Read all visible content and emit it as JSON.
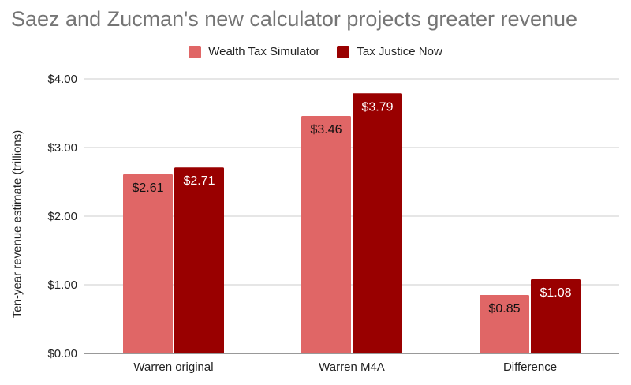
{
  "chart_data": {
    "type": "bar",
    "title": "Saez and Zucman's new calculator projects greater revenue",
    "xlabel": "",
    "ylabel": "Ten-year revenue estimate (trillions)",
    "categories": [
      "Warren original",
      "Warren M4A",
      "Difference"
    ],
    "series": [
      {
        "name": "Wealth Tax Simulator",
        "color": "#e06666",
        "values": [
          2.61,
          3.46,
          0.85
        ],
        "labels": [
          "$2.61",
          "$3.46",
          "$0.85"
        ]
      },
      {
        "name": "Tax Justice Now",
        "color": "#990000",
        "values": [
          2.71,
          3.79,
          1.08
        ],
        "labels": [
          "$2.71",
          "$3.79",
          "$1.08"
        ]
      }
    ],
    "ylim": [
      0,
      4
    ],
    "yticks": [
      {
        "value": 0,
        "label": "$0.00"
      },
      {
        "value": 1,
        "label": "$1.00"
      },
      {
        "value": 2,
        "label": "$2.00"
      },
      {
        "value": 3,
        "label": "$3.00"
      },
      {
        "value": 4,
        "label": "$4.00"
      }
    ],
    "grid": true,
    "legend_position": "top-center"
  }
}
